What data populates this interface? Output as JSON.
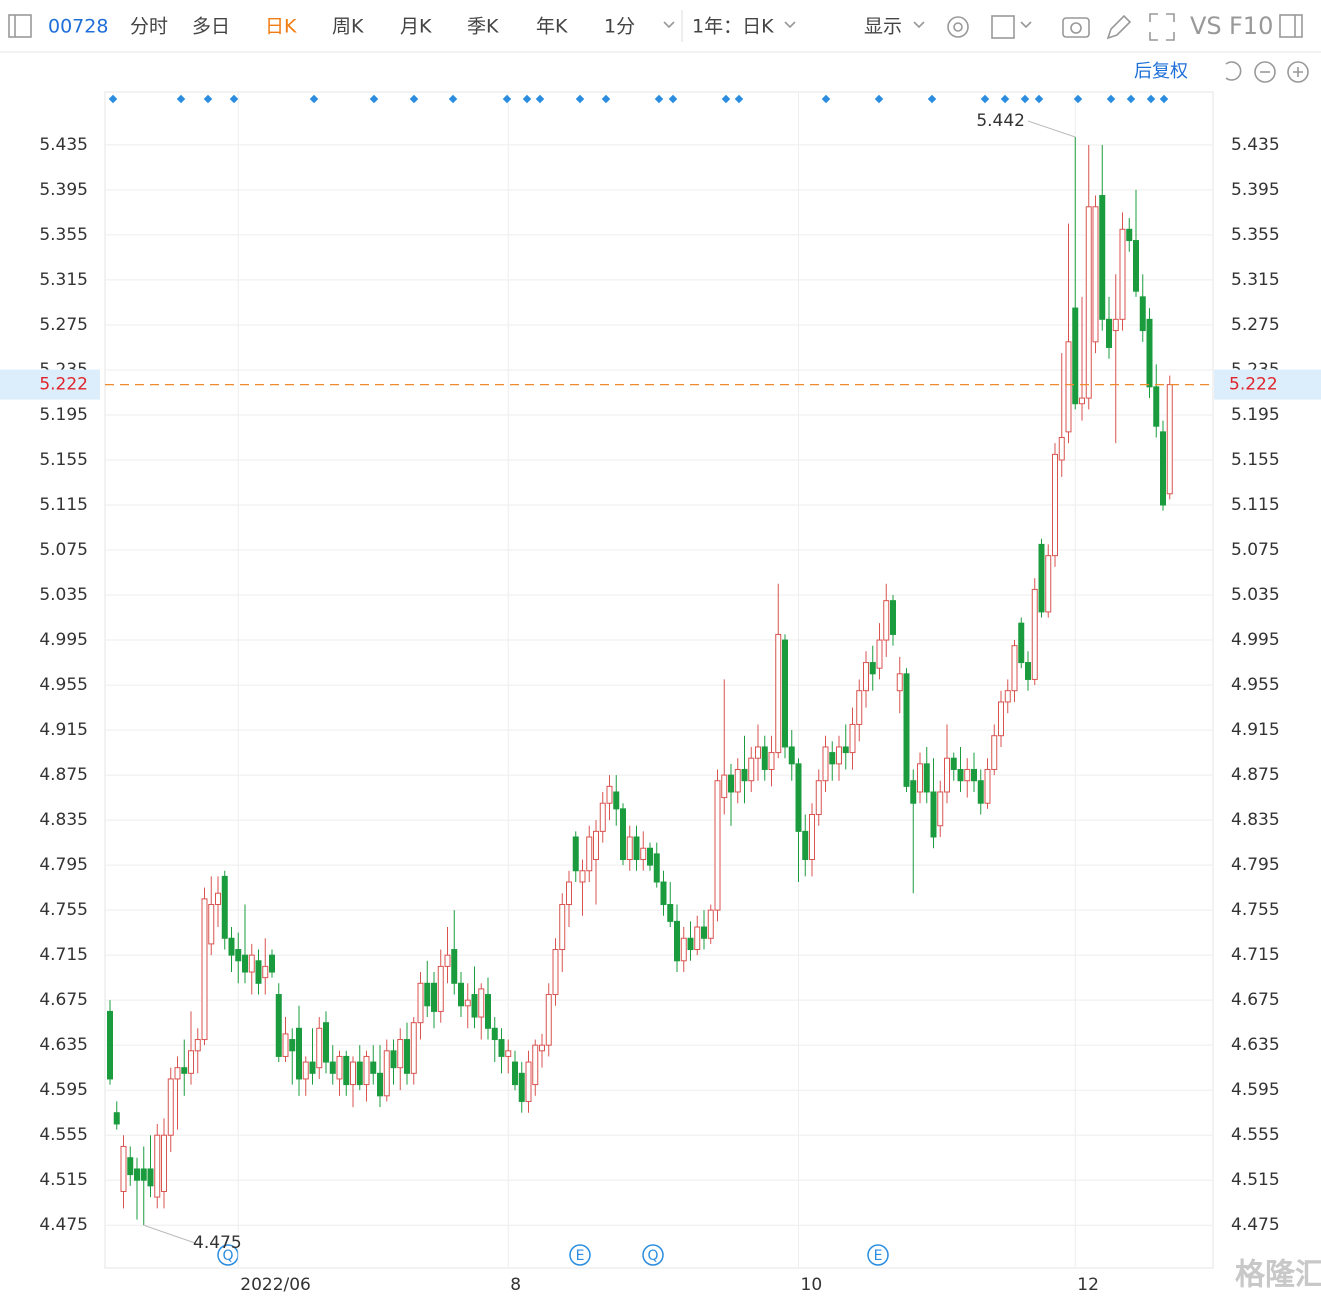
{
  "toolbar": {
    "code": "00728",
    "tabs": [
      "分时",
      "多日",
      "日K",
      "周K",
      "月K",
      "季K",
      "年K",
      "1分"
    ],
    "range": "1年：日K",
    "display": "显示",
    "vs": "VS",
    "f10": "F10"
  },
  "chart_data": {
    "type": "candlestick",
    "adjust": "后复权",
    "up_color": "#d9534f",
    "down_color": "#1a9c3e",
    "grid": true,
    "ylim": [
      4.437,
      5.482
    ],
    "yticks": [
      4.475,
      4.515,
      4.555,
      4.595,
      4.635,
      4.675,
      4.715,
      4.755,
      4.795,
      4.835,
      4.875,
      4.915,
      4.955,
      4.995,
      5.035,
      5.075,
      5.115,
      5.155,
      5.195,
      5.235,
      5.275,
      5.315,
      5.355,
      5.395,
      5.435
    ],
    "xticks": [
      {
        "value": 19,
        "label": "2022/06"
      },
      {
        "value": 59,
        "label": "8"
      },
      {
        "value": 102,
        "label": "10"
      },
      {
        "value": 143,
        "label": "12"
      }
    ],
    "last_price": 5.222,
    "max_label": 5.442,
    "min_label": 4.475,
    "event_markers": [
      "Q",
      "E",
      "Q",
      "E"
    ],
    "ohlc": [
      [
        4.665,
        4.675,
        4.6,
        4.605
      ],
      [
        4.575,
        4.585,
        4.56,
        4.565
      ],
      [
        4.505,
        4.555,
        4.49,
        4.545
      ],
      [
        4.535,
        4.545,
        4.51,
        4.52
      ],
      [
        4.525,
        4.535,
        4.48,
        4.515
      ],
      [
        4.525,
        4.545,
        4.475,
        4.515
      ],
      [
        4.525,
        4.555,
        4.5,
        4.51
      ],
      [
        4.5,
        4.565,
        4.49,
        4.555
      ],
      [
        4.505,
        4.57,
        4.49,
        4.555
      ],
      [
        4.555,
        4.615,
        4.54,
        4.605
      ],
      [
        4.605,
        4.625,
        4.56,
        4.615
      ],
      [
        4.615,
        4.64,
        4.59,
        4.61
      ],
      [
        4.61,
        4.665,
        4.6,
        4.63
      ],
      [
        4.63,
        4.65,
        4.61,
        4.64
      ],
      [
        4.64,
        4.775,
        4.635,
        4.765
      ],
      [
        4.725,
        4.785,
        4.715,
        4.76
      ],
      [
        4.76,
        4.785,
        4.74,
        4.77
      ],
      [
        4.785,
        4.79,
        4.72,
        4.73
      ],
      [
        4.73,
        4.74,
        4.7,
        4.715
      ],
      [
        4.72,
        4.735,
        4.69,
        4.71
      ],
      [
        4.715,
        4.76,
        4.69,
        4.7
      ],
      [
        4.7,
        4.725,
        4.68,
        4.715
      ],
      [
        4.71,
        4.72,
        4.68,
        4.69
      ],
      [
        4.695,
        4.73,
        4.68,
        4.705
      ],
      [
        4.715,
        4.72,
        4.695,
        4.7
      ],
      [
        4.68,
        4.69,
        4.62,
        4.625
      ],
      [
        4.625,
        4.66,
        4.62,
        4.645
      ],
      [
        4.64,
        4.65,
        4.6,
        4.63
      ],
      [
        4.65,
        4.67,
        4.59,
        4.605
      ],
      [
        4.605,
        4.625,
        4.59,
        4.62
      ],
      [
        4.62,
        4.65,
        4.6,
        4.61
      ],
      [
        4.615,
        4.66,
        4.605,
        4.65
      ],
      [
        4.655,
        4.665,
        4.61,
        4.62
      ],
      [
        4.62,
        4.635,
        4.6,
        4.61
      ],
      [
        4.605,
        4.63,
        4.59,
        4.625
      ],
      [
        4.625,
        4.63,
        4.59,
        4.6
      ],
      [
        4.6,
        4.625,
        4.58,
        4.62
      ],
      [
        4.62,
        4.635,
        4.595,
        4.6
      ],
      [
        4.6,
        4.63,
        4.585,
        4.625
      ],
      [
        4.62,
        4.635,
        4.6,
        4.61
      ],
      [
        4.61,
        4.635,
        4.58,
        4.59
      ],
      [
        4.59,
        4.64,
        4.585,
        4.63
      ],
      [
        4.63,
        4.64,
        4.6,
        4.615
      ],
      [
        4.615,
        4.65,
        4.595,
        4.64
      ],
      [
        4.64,
        4.655,
        4.6,
        4.61
      ],
      [
        4.61,
        4.66,
        4.6,
        4.655
      ],
      [
        4.655,
        4.7,
        4.64,
        4.69
      ],
      [
        4.69,
        4.71,
        4.66,
        4.67
      ],
      [
        4.69,
        4.7,
        4.65,
        4.665
      ],
      [
        4.665,
        4.72,
        4.655,
        4.705
      ],
      [
        4.705,
        4.74,
        4.69,
        4.715
      ],
      [
        4.72,
        4.755,
        4.68,
        4.69
      ],
      [
        4.69,
        4.7,
        4.66,
        4.67
      ],
      [
        4.67,
        4.69,
        4.65,
        4.675
      ],
      [
        4.68,
        4.705,
        4.65,
        4.66
      ],
      [
        4.66,
        4.69,
        4.64,
        4.685
      ],
      [
        4.68,
        4.695,
        4.64,
        4.65
      ],
      [
        4.65,
        4.66,
        4.62,
        4.64
      ],
      [
        4.64,
        4.65,
        4.61,
        4.625
      ],
      [
        4.625,
        4.64,
        4.61,
        4.63
      ],
      [
        4.62,
        4.63,
        4.595,
        4.6
      ],
      [
        4.61,
        4.62,
        4.575,
        4.585
      ],
      [
        4.585,
        4.63,
        4.575,
        4.62
      ],
      [
        4.6,
        4.64,
        4.59,
        4.635
      ],
      [
        4.63,
        4.645,
        4.615,
        4.635
      ],
      [
        4.635,
        4.69,
        4.625,
        4.68
      ],
      [
        4.68,
        4.73,
        4.67,
        4.72
      ],
      [
        4.72,
        4.77,
        4.7,
        4.76
      ],
      [
        4.76,
        4.79,
        4.74,
        4.78
      ],
      [
        4.82,
        4.825,
        4.78,
        4.79
      ],
      [
        4.78,
        4.8,
        4.75,
        4.79
      ],
      [
        4.79,
        4.83,
        4.78,
        4.82
      ],
      [
        4.8,
        4.835,
        4.76,
        4.825
      ],
      [
        4.825,
        4.86,
        4.815,
        4.85
      ],
      [
        4.85,
        4.875,
        4.835,
        4.865
      ],
      [
        4.86,
        4.875,
        4.83,
        4.845
      ],
      [
        4.845,
        4.85,
        4.795,
        4.8
      ],
      [
        4.8,
        4.83,
        4.79,
        4.82
      ],
      [
        4.82,
        4.83,
        4.79,
        4.8
      ],
      [
        4.8,
        4.825,
        4.79,
        4.81
      ],
      [
        4.81,
        4.815,
        4.79,
        4.795
      ],
      [
        4.805,
        4.815,
        4.775,
        4.78
      ],
      [
        4.78,
        4.79,
        4.75,
        4.76
      ],
      [
        4.76,
        4.78,
        4.74,
        4.745
      ],
      [
        4.745,
        4.76,
        4.7,
        4.71
      ],
      [
        4.71,
        4.74,
        4.7,
        4.73
      ],
      [
        4.73,
        4.745,
        4.71,
        4.72
      ],
      [
        4.72,
        4.75,
        4.715,
        4.74
      ],
      [
        4.74,
        4.755,
        4.72,
        4.73
      ],
      [
        4.73,
        4.76,
        4.725,
        4.755
      ],
      [
        4.755,
        4.88,
        4.745,
        4.87
      ],
      [
        4.855,
        4.96,
        4.84,
        4.875
      ],
      [
        4.875,
        4.885,
        4.83,
        4.86
      ],
      [
        4.86,
        4.89,
        4.85,
        4.88
      ],
      [
        4.88,
        4.91,
        4.85,
        4.87
      ],
      [
        4.87,
        4.9,
        4.86,
        4.89
      ],
      [
        4.89,
        4.92,
        4.87,
        4.9
      ],
      [
        4.9,
        4.91,
        4.87,
        4.88
      ],
      [
        4.88,
        4.91,
        4.865,
        4.895
      ],
      [
        4.895,
        5.045,
        4.89,
        5.0
      ],
      [
        4.995,
        5.0,
        4.89,
        4.9
      ],
      [
        4.9,
        4.915,
        4.87,
        4.885
      ],
      [
        4.885,
        4.89,
        4.78,
        4.825
      ],
      [
        4.825,
        4.84,
        4.785,
        4.8
      ],
      [
        4.8,
        4.85,
        4.785,
        4.84
      ],
      [
        4.84,
        4.88,
        4.83,
        4.87
      ],
      [
        4.87,
        4.91,
        4.86,
        4.9
      ],
      [
        4.895,
        4.905,
        4.87,
        4.885
      ],
      [
        4.885,
        4.91,
        4.87,
        4.9
      ],
      [
        4.9,
        4.92,
        4.88,
        4.895
      ],
      [
        4.895,
        4.935,
        4.88,
        4.92
      ],
      [
        4.92,
        4.96,
        4.905,
        4.95
      ],
      [
        4.95,
        4.985,
        4.935,
        4.975
      ],
      [
        4.975,
        4.99,
        4.95,
        4.965
      ],
      [
        4.97,
        5.01,
        4.96,
        4.995
      ],
      [
        4.995,
        5.045,
        4.98,
        5.03
      ],
      [
        5.03,
        5.035,
        4.99,
        5.0
      ],
      [
        4.95,
        4.98,
        4.93,
        4.965
      ],
      [
        4.965,
        4.97,
        4.86,
        4.865
      ],
      [
        4.87,
        4.88,
        4.77,
        4.85
      ],
      [
        4.86,
        4.895,
        4.85,
        4.885
      ],
      [
        4.885,
        4.9,
        4.85,
        4.86
      ],
      [
        4.86,
        4.89,
        4.81,
        4.82
      ],
      [
        4.83,
        4.87,
        4.82,
        4.86
      ],
      [
        4.86,
        4.92,
        4.85,
        4.89
      ],
      [
        4.89,
        4.895,
        4.87,
        4.88
      ],
      [
        4.88,
        4.9,
        4.86,
        4.87
      ],
      [
        4.87,
        4.89,
        4.855,
        4.88
      ],
      [
        4.88,
        4.895,
        4.86,
        4.87
      ],
      [
        4.87,
        4.88,
        4.84,
        4.85
      ],
      [
        4.85,
        4.89,
        4.845,
        4.88
      ],
      [
        4.88,
        4.92,
        4.875,
        4.91
      ],
      [
        4.91,
        4.95,
        4.9,
        4.94
      ],
      [
        4.94,
        4.96,
        4.93,
        4.95
      ],
      [
        4.95,
        4.995,
        4.94,
        4.99
      ],
      [
        5.01,
        5.015,
        4.97,
        4.975
      ],
      [
        4.975,
        4.985,
        4.95,
        4.96
      ],
      [
        4.96,
        5.05,
        4.955,
        5.04
      ],
      [
        5.08,
        5.085,
        5.015,
        5.02
      ],
      [
        5.02,
        5.08,
        5.015,
        5.07
      ],
      [
        5.07,
        5.17,
        5.06,
        5.16
      ],
      [
        5.155,
        5.25,
        5.14,
        5.175
      ],
      [
        5.18,
        5.365,
        5.17,
        5.26
      ],
      [
        5.29,
        5.442,
        5.2,
        5.205
      ],
      [
        5.205,
        5.3,
        5.19,
        5.21
      ],
      [
        5.21,
        5.435,
        5.2,
        5.38
      ],
      [
        5.26,
        5.39,
        5.25,
        5.38
      ],
      [
        5.39,
        5.435,
        5.27,
        5.28
      ],
      [
        5.28,
        5.3,
        5.245,
        5.255
      ],
      [
        5.27,
        5.32,
        5.17,
        5.28
      ],
      [
        5.28,
        5.375,
        5.27,
        5.36
      ],
      [
        5.36,
        5.37,
        5.34,
        5.35
      ],
      [
        5.35,
        5.395,
        5.3,
        5.305
      ],
      [
        5.3,
        5.32,
        5.26,
        5.27
      ],
      [
        5.28,
        5.29,
        5.21,
        5.22
      ],
      [
        5.22,
        5.24,
        5.175,
        5.185
      ],
      [
        5.18,
        5.19,
        5.11,
        5.115
      ],
      [
        5.125,
        5.23,
        5.12,
        5.222
      ]
    ]
  },
  "watermark": "格隆汇"
}
